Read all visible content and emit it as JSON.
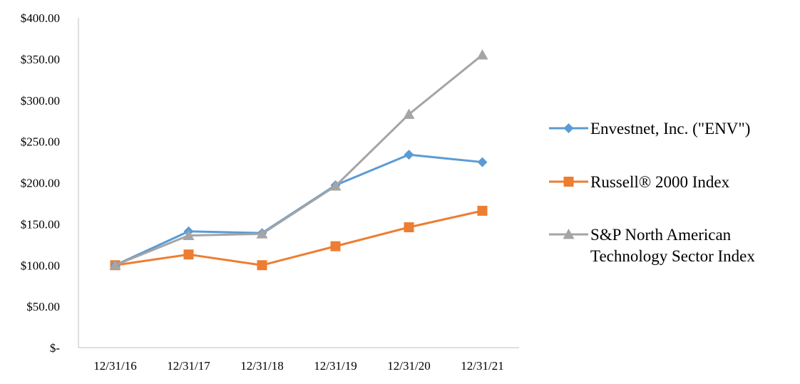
{
  "chart_data": {
    "type": "line",
    "title": "",
    "xlabel": "",
    "ylabel": "",
    "categories": [
      "12/31/16",
      "12/31/17",
      "12/31/18",
      "12/31/19",
      "12/31/20",
      "12/31/21"
    ],
    "y_ticks": [
      {
        "value": 0,
        "label": "$-"
      },
      {
        "value": 50,
        "label": "$50.00"
      },
      {
        "value": 100,
        "label": "$100.00"
      },
      {
        "value": 150,
        "label": "$150.00"
      },
      {
        "value": 200,
        "label": "$200.00"
      },
      {
        "value": 250,
        "label": "$250.00"
      },
      {
        "value": 300,
        "label": "$300.00"
      },
      {
        "value": 350,
        "label": "$350.00"
      },
      {
        "value": 400,
        "label": "$400.00"
      }
    ],
    "ylim": [
      0,
      400
    ],
    "grid": false,
    "legend_position": "right",
    "series": [
      {
        "name": "Envestnet, Inc.  (\"ENV\")",
        "legend_lines": [
          "Envestnet, Inc.  (\"ENV\")"
        ],
        "color": "#5B9BD5",
        "marker": "diamond",
        "values": [
          100,
          141,
          139,
          197,
          234,
          225
        ]
      },
      {
        "name": "Russell® 2000 Index",
        "legend_lines": [
          "Russell® 2000 Index"
        ],
        "color": "#ED7D31",
        "marker": "square",
        "values": [
          100,
          113,
          100,
          123,
          146,
          166
        ]
      },
      {
        "name": "S&P North American Technology Sector Index",
        "legend_lines": [
          "S&P North American",
          "Technology Sector Index"
        ],
        "color": "#A5A5A5",
        "marker": "triangle",
        "values": [
          100,
          136,
          138,
          196,
          283,
          355
        ]
      }
    ]
  }
}
